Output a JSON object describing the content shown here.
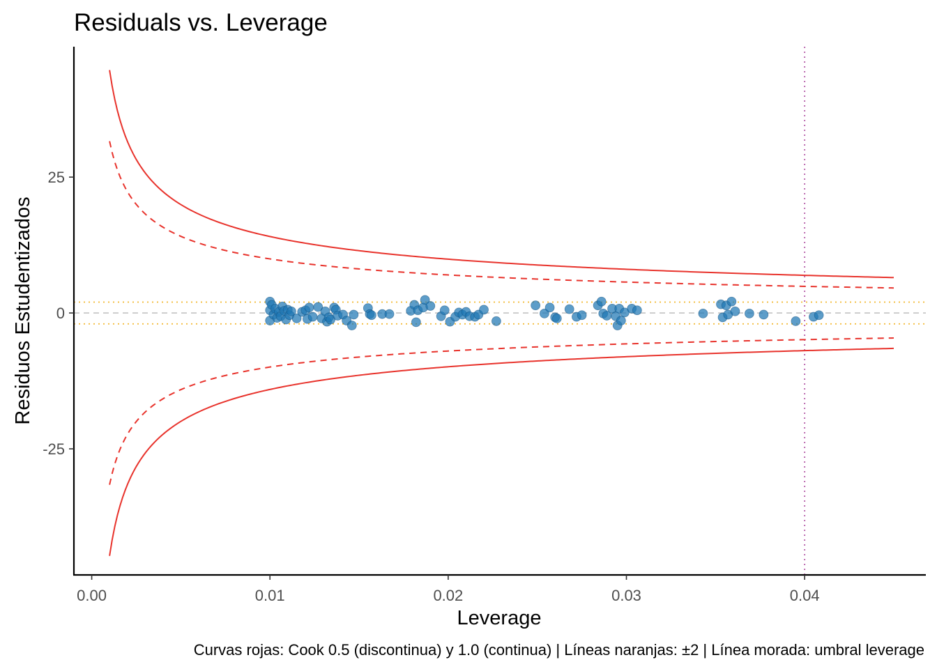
{
  "colors": {
    "cook_curve": "#E8322B",
    "threshold_lines": "#F2B72E",
    "leverage_line": "#B55BA8",
    "zero_line": "#BDBDBD",
    "points": "#1F77B4",
    "axis": "#000000"
  },
  "chart_data": {
    "type": "scatter",
    "title": "Residuals vs. Leverage",
    "xlabel": "Leverage",
    "ylabel": "Residuos Estudentizados",
    "caption": "Curvas rojas: Cook 0.5 (discontinua) y 1.0 (continua) | Líneas naranjas: ±2 | Línea morada: umbral leverage",
    "xlim": [
      -0.001,
      0.0468
    ],
    "ylim": [
      -48.2,
      49
    ],
    "x_ticks": [
      0.0,
      0.01,
      0.02,
      0.03,
      0.04
    ],
    "x_tick_labels": [
      "0.00",
      "0.01",
      "0.02",
      "0.03",
      "0.04"
    ],
    "y_ticks": [
      -25,
      0,
      25
    ],
    "y_tick_labels": [
      "-25",
      "0",
      "25"
    ],
    "grid": false,
    "hlines": [
      {
        "y": 0,
        "style": "dashed",
        "color": "zero"
      },
      {
        "y": 2,
        "style": "dotted",
        "color": "threshold"
      },
      {
        "y": -2,
        "style": "dotted",
        "color": "threshold"
      }
    ],
    "vlines": [
      {
        "x": 0.04,
        "style": "dotted",
        "color": "leverage"
      }
    ],
    "cook_curves": [
      {
        "level": 0.5,
        "style": "dashed",
        "x_range": [
          0.001,
          0.045
        ]
      },
      {
        "level": 1.0,
        "style": "solid",
        "x_range": [
          0.001,
          0.045
        ]
      }
    ],
    "points": [
      [
        0.01,
        2.1
      ],
      [
        0.01,
        0.5
      ],
      [
        0.01,
        -1.4
      ],
      [
        0.0101,
        1.5
      ],
      [
        0.0102,
        -0.3
      ],
      [
        0.0103,
        0.8
      ],
      [
        0.0104,
        -0.9
      ],
      [
        0.0105,
        0.2
      ],
      [
        0.0106,
        -0.6
      ],
      [
        0.0107,
        1.2
      ],
      [
        0.0108,
        0.4
      ],
      [
        0.0109,
        -1.2
      ],
      [
        0.011,
        0.6
      ],
      [
        0.0111,
        -0.4
      ],
      [
        0.0112,
        0.3
      ],
      [
        0.0115,
        -1.0
      ],
      [
        0.0118,
        0.2
      ],
      [
        0.012,
        0.5
      ],
      [
        0.0121,
        -1.1
      ],
      [
        0.0122,
        1.0
      ],
      [
        0.0124,
        -0.7
      ],
      [
        0.0127,
        1.1
      ],
      [
        0.0129,
        -1.0
      ],
      [
        0.0131,
        0.3
      ],
      [
        0.0132,
        -1.6
      ],
      [
        0.0133,
        -0.8
      ],
      [
        0.0134,
        -1.2
      ],
      [
        0.0136,
        1.0
      ],
      [
        0.0137,
        0.6
      ],
      [
        0.0138,
        -0.5
      ],
      [
        0.0141,
        -0.3
      ],
      [
        0.0143,
        -1.4
      ],
      [
        0.0146,
        -2.3
      ],
      [
        0.0147,
        -0.3
      ],
      [
        0.0155,
        0.9
      ],
      [
        0.0156,
        -0.2
      ],
      [
        0.0157,
        -0.4
      ],
      [
        0.0163,
        -0.2
      ],
      [
        0.0167,
        -0.2
      ],
      [
        0.0179,
        0.4
      ],
      [
        0.0181,
        1.5
      ],
      [
        0.0182,
        -1.7
      ],
      [
        0.0183,
        0.5
      ],
      [
        0.0186,
        1.0
      ],
      [
        0.0187,
        2.4
      ],
      [
        0.019,
        1.3
      ],
      [
        0.0196,
        -0.6
      ],
      [
        0.0198,
        0.5
      ],
      [
        0.0201,
        -1.6
      ],
      [
        0.0204,
        -0.7
      ],
      [
        0.0206,
        0.1
      ],
      [
        0.0208,
        -0.3
      ],
      [
        0.021,
        0.2
      ],
      [
        0.0212,
        -0.6
      ],
      [
        0.0215,
        -0.7
      ],
      [
        0.0217,
        -0.3
      ],
      [
        0.022,
        0.6
      ],
      [
        0.0227,
        -1.5
      ],
      [
        0.0249,
        1.4
      ],
      [
        0.0254,
        -0.1
      ],
      [
        0.0257,
        1.0
      ],
      [
        0.026,
        -0.8
      ],
      [
        0.0261,
        -1.0
      ],
      [
        0.0268,
        0.7
      ],
      [
        0.0272,
        -0.7
      ],
      [
        0.0275,
        -0.4
      ],
      [
        0.0284,
        1.4
      ],
      [
        0.0286,
        2.1
      ],
      [
        0.0287,
        -0.1
      ],
      [
        0.0289,
        -0.5
      ],
      [
        0.0292,
        0.8
      ],
      [
        0.0294,
        -0.6
      ],
      [
        0.0295,
        -2.3
      ],
      [
        0.0296,
        0.8
      ],
      [
        0.0297,
        -1.4
      ],
      [
        0.0299,
        0.1
      ],
      [
        0.0303,
        0.8
      ],
      [
        0.0306,
        0.5
      ],
      [
        0.0343,
        -0.1
      ],
      [
        0.0353,
        1.6
      ],
      [
        0.0354,
        -0.8
      ],
      [
        0.0356,
        1.4
      ],
      [
        0.0357,
        -0.3
      ],
      [
        0.0359,
        2.1
      ],
      [
        0.0361,
        0.3
      ],
      [
        0.0369,
        -0.1
      ],
      [
        0.0377,
        -0.3
      ],
      [
        0.0395,
        -1.5
      ],
      [
        0.0405,
        -0.7
      ],
      [
        0.0408,
        -0.4
      ]
    ]
  }
}
